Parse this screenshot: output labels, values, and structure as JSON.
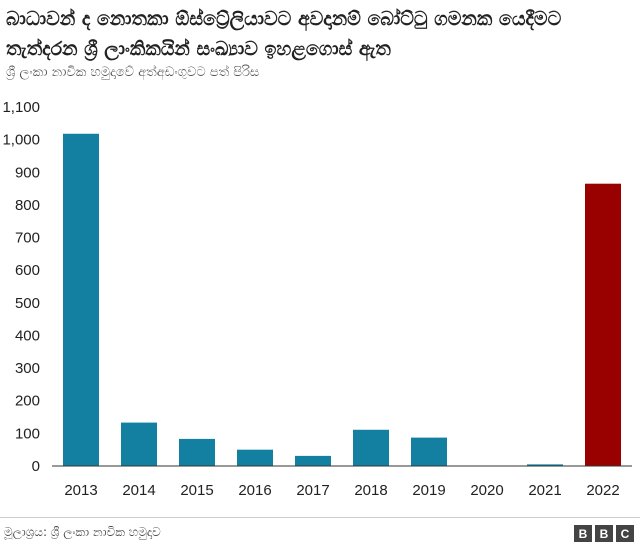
{
  "chart_data": {
    "type": "bar",
    "title": "බාධාවන් ද නොතකා ඕස්ට්‍රේලියාවට අවදානම් බෝට්ටු ගමනක යෙදීමට තැත්දරන ශ්‍රී ලාංකිකයින් සංඛ්‍යාව ඉහළගොස් ඇත",
    "subtitle": "ශ්‍රී ලංකා නාවික හමුදාවේ අත්අඩංගුවට පත් පිරිස",
    "categories": [
      "2013",
      "2014",
      "2015",
      "2016",
      "2017",
      "2018",
      "2019",
      "2020",
      "2021",
      "2022"
    ],
    "values": [
      1018,
      133,
      83,
      50,
      31,
      111,
      87,
      0,
      5,
      865
    ],
    "y_ticks": [
      0,
      100,
      200,
      300,
      400,
      500,
      600,
      700,
      800,
      900,
      1000,
      1100
    ],
    "y_tick_labels": [
      "0",
      "100",
      "200",
      "300",
      "400",
      "500",
      "600",
      "700",
      "800",
      "900",
      "1,000",
      "1,100"
    ],
    "ylim": [
      0,
      1100
    ],
    "xlabel": "",
    "ylabel": "",
    "grid": false,
    "colors": {
      "default": "#1380a1",
      "highlight": "#990000"
    },
    "highlight_category": "2022"
  },
  "source": "මූලාශ්‍රය: ශ්‍රී ලංකා නාවික හමුදාව",
  "logo": [
    "B",
    "B",
    "C"
  ]
}
